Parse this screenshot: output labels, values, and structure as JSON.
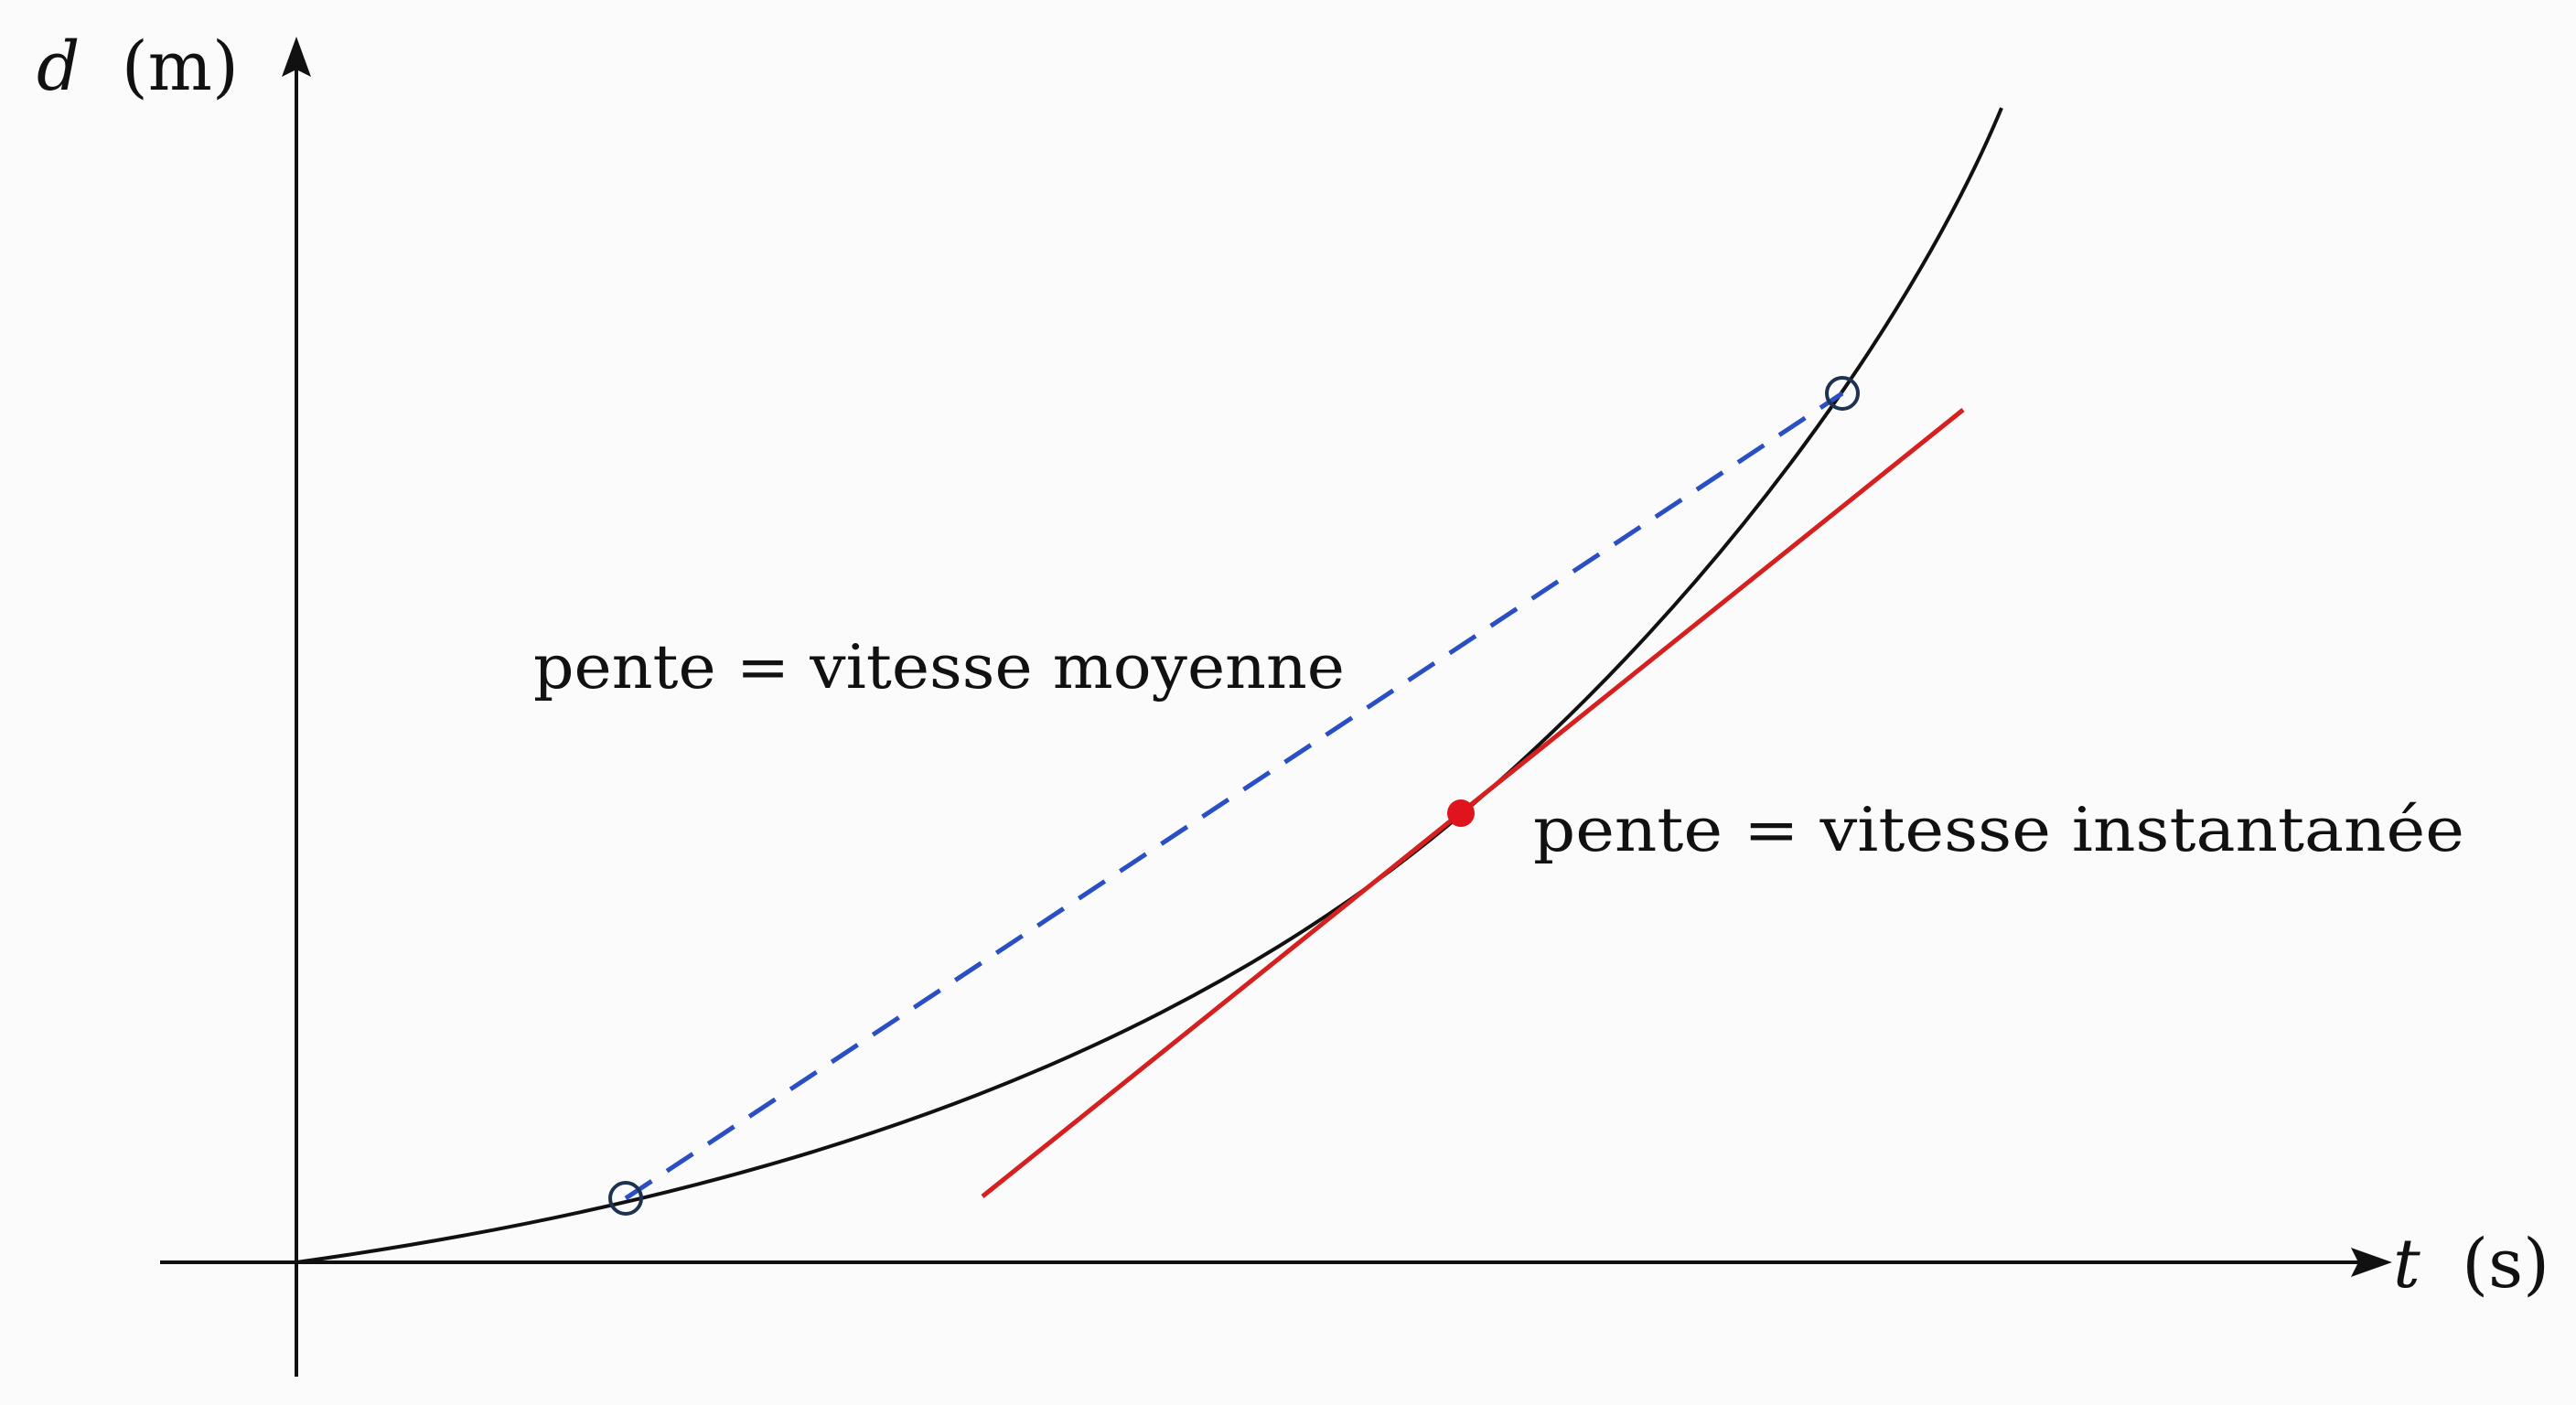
{
  "axes": {
    "y": {
      "variable": "d",
      "unit": "(m)"
    },
    "x": {
      "variable": "t",
      "unit": "(s)"
    }
  },
  "annotations": {
    "secant": "pente = vitesse moyenne",
    "tangent": "pente = vitesse instantanée"
  },
  "colors": {
    "curve": "#111111",
    "axes": "#111111",
    "secant": "#2a4fc4",
    "tangent": "#d62020",
    "tangent_point": "#e0141c",
    "secant_points": "#1e3350"
  }
}
